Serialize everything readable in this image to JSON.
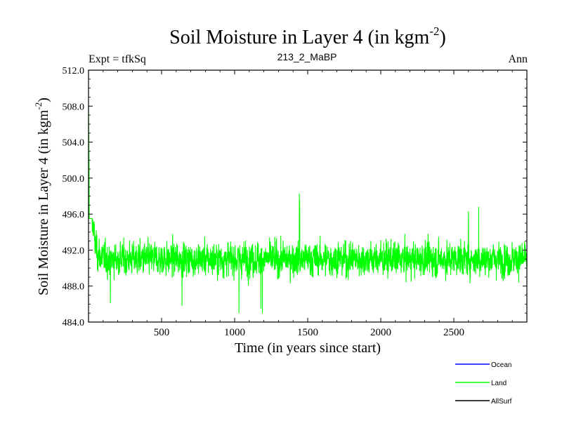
{
  "chart_data": {
    "type": "line",
    "title_main": "Soil Moisture in Layer 4 (in kgm",
    "title_sup": "-2",
    "title_close": ")",
    "subtitle_left": "Expt = tfkSq",
    "subtitle_center": "213_2_MaBP",
    "subtitle_right": "Ann",
    "xlabel": "Time (in years since start)",
    "ylabel_main": "Soil Moisture in Layer 4 (in kgm",
    "ylabel_sup": "-2",
    "ylabel_close": ")",
    "xlim": [
      0,
      3000
    ],
    "ylim": [
      484.0,
      512.0
    ],
    "x_ticks": [
      500,
      1000,
      1500,
      2000,
      2500
    ],
    "x_tick_labels": [
      "500",
      "1000",
      "1500",
      "2000",
      "2500"
    ],
    "y_ticks": [
      484.0,
      488.0,
      492.0,
      496.0,
      500.0,
      504.0,
      508.0,
      512.0
    ],
    "y_tick_labels": [
      "484.0",
      "488.0",
      "492.0",
      "496.0",
      "500.0",
      "504.0",
      "508.0",
      "512.0"
    ],
    "legend_position": "bottom-right",
    "series": [
      {
        "name": "Ocean",
        "color": "#0000ff",
        "values": []
      },
      {
        "name": "Land",
        "color": "#00ff00",
        "noisy_annual": true,
        "x_step": 1,
        "mean": 491.0,
        "noise_sd": 1.6,
        "initial_value": 508.2,
        "spin_up_years": 60,
        "peaks": [
          [
            1443,
            498.3
          ],
          [
            1445,
            497.5
          ],
          [
            2670,
            496.8
          ],
          [
            2600,
            496.3
          ]
        ],
        "troughs": [
          [
            1030,
            485.0
          ],
          [
            1190,
            485.0
          ],
          [
            1180,
            485.5
          ],
          [
            150,
            486.1
          ],
          [
            640,
            485.8
          ]
        ]
      },
      {
        "name": "AllSurf",
        "color": "#000000",
        "values": []
      }
    ]
  }
}
